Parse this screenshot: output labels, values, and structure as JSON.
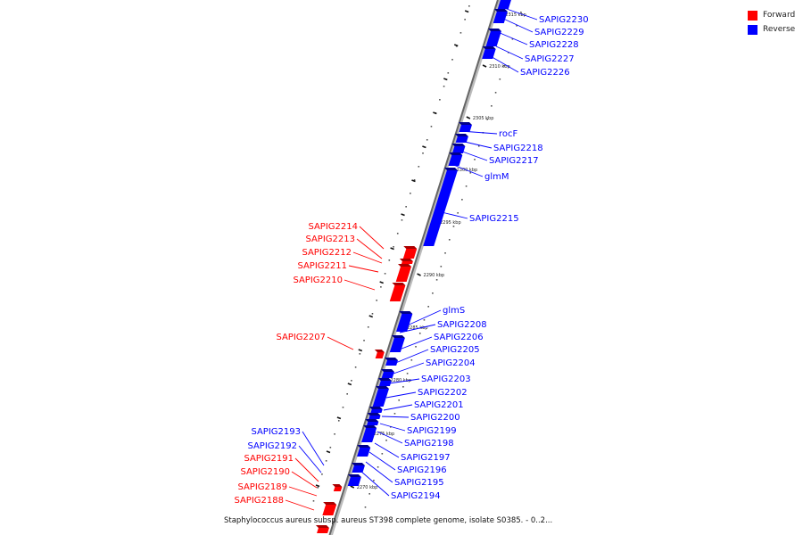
{
  "legend": {
    "forward_label": "Forward",
    "reverse_label": "Reverse",
    "forward_color": "#ff0000",
    "reverse_color": "#0000ff"
  },
  "caption": "Staphylococcus aureus subsp. aureus ST398 complete genome, isolate S0385. - 0..2...",
  "ticks": [
    {
      "label": "2315 kbp"
    },
    {
      "label": "2310 kbp"
    },
    {
      "label": "2305 kbp"
    },
    {
      "label": "2300 kbp"
    },
    {
      "label": "2295 kbp"
    },
    {
      "label": "2290 kbp"
    },
    {
      "label": "2285 kbp"
    },
    {
      "label": "2280 kbp"
    },
    {
      "label": "2275 kbp"
    },
    {
      "label": "2270 kbp"
    }
  ],
  "genes": [
    {
      "name": "SAPIG2230",
      "strand": "reverse"
    },
    {
      "name": "SAPIG2229",
      "strand": "reverse"
    },
    {
      "name": "SAPIG2228",
      "strand": "reverse"
    },
    {
      "name": "SAPIG2227",
      "strand": "reverse"
    },
    {
      "name": "SAPIG2226",
      "strand": "reverse"
    },
    {
      "name": "rocF",
      "strand": "reverse"
    },
    {
      "name": "SAPIG2218",
      "strand": "reverse"
    },
    {
      "name": "SAPIG2217",
      "strand": "reverse"
    },
    {
      "name": "glmM",
      "strand": "reverse"
    },
    {
      "name": "SAPIG2215",
      "strand": "reverse"
    },
    {
      "name": "SAPIG2214",
      "strand": "forward"
    },
    {
      "name": "SAPIG2213",
      "strand": "forward"
    },
    {
      "name": "SAPIG2212",
      "strand": "forward"
    },
    {
      "name": "SAPIG2211",
      "strand": "forward"
    },
    {
      "name": "SAPIG2210",
      "strand": "forward"
    },
    {
      "name": "glmS",
      "strand": "reverse"
    },
    {
      "name": "SAPIG2208",
      "strand": "reverse"
    },
    {
      "name": "SAPIG2207",
      "strand": "forward"
    },
    {
      "name": "SAPIG2206",
      "strand": "reverse"
    },
    {
      "name": "SAPIG2205",
      "strand": "reverse"
    },
    {
      "name": "SAPIG2204",
      "strand": "reverse"
    },
    {
      "name": "SAPIG2203",
      "strand": "reverse"
    },
    {
      "name": "SAPIG2202",
      "strand": "reverse"
    },
    {
      "name": "SAPIG2201",
      "strand": "reverse"
    },
    {
      "name": "SAPIG2200",
      "strand": "reverse"
    },
    {
      "name": "SAPIG2199",
      "strand": "reverse"
    },
    {
      "name": "SAPIG2198",
      "strand": "reverse"
    },
    {
      "name": "SAPIG2197",
      "strand": "reverse"
    },
    {
      "name": "SAPIG2196",
      "strand": "reverse"
    },
    {
      "name": "SAPIG2195",
      "strand": "reverse"
    },
    {
      "name": "SAPIG2194",
      "strand": "reverse"
    },
    {
      "name": "SAPIG2193",
      "strand": "reverse"
    },
    {
      "name": "SAPIG2192",
      "strand": "reverse"
    },
    {
      "name": "SAPIG2191",
      "strand": "forward"
    },
    {
      "name": "SAPIG2190",
      "strand": "forward"
    },
    {
      "name": "SAPIG2189",
      "strand": "forward"
    },
    {
      "name": "SAPIG2188",
      "strand": "forward"
    }
  ]
}
